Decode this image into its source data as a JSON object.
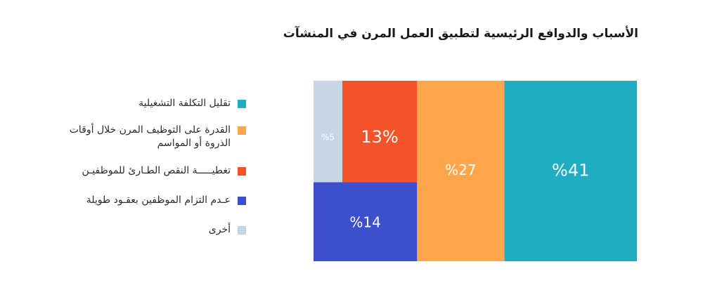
{
  "chart_data": {
    "type": "treemap",
    "title": "الأسباب والدوافع الرئيسية لتطبيق العمل المرن في المنشآت",
    "categories": [
      "تقليل التكلفة التشغيلية",
      "القدرة على التوظيف المرن خلال أوقات الذروة أو المواسم",
      "تغطيـــــة النقص الطـارئ للموظفيـن",
      "عـدم التزام الموظفين بعقـود طويلة",
      "أخرى"
    ],
    "values": [
      41,
      27,
      13,
      14,
      5
    ],
    "data_labels": [
      "%41",
      "%27",
      "13%",
      "%14",
      "%5"
    ],
    "colors": [
      "#1fadc2",
      "#ffa64d",
      "#f4532a",
      "#3c4fcc",
      "#c7d6e6"
    ],
    "legend_position": "left"
  }
}
